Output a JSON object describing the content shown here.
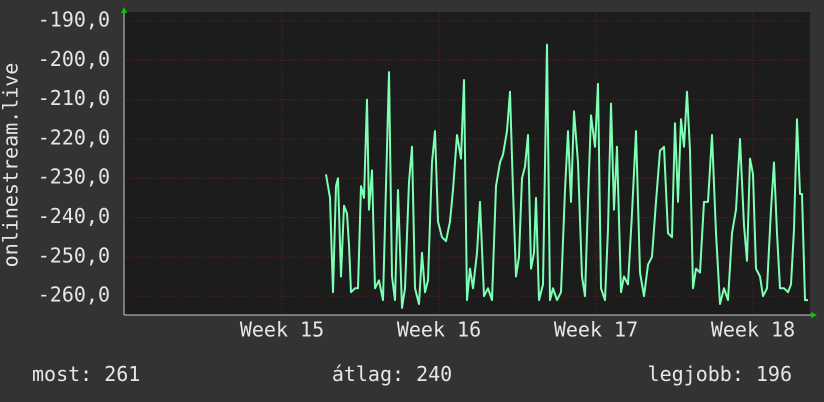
{
  "chart_data": {
    "type": "line",
    "ylabel": "onlinestream.live",
    "xlim": [
      0,
      686
    ],
    "ylim": [
      -264.8,
      -187.7
    ],
    "xticks": [
      {
        "value": 158,
        "label": "Week 15"
      },
      {
        "value": 315,
        "label": "Week 16"
      },
      {
        "value": 472,
        "label": "Week 17"
      },
      {
        "value": 629,
        "label": "Week 18"
      }
    ],
    "yticks": [
      {
        "value": -190,
        "label": "-190,0"
      },
      {
        "value": -200,
        "label": "-200,0"
      },
      {
        "value": -210,
        "label": "-210,0"
      },
      {
        "value": -220,
        "label": "-220,0"
      },
      {
        "value": -230,
        "label": "-230,0"
      },
      {
        "value": -240,
        "label": "-240,0"
      },
      {
        "value": -250,
        "label": "-250,0"
      },
      {
        "value": -260,
        "label": "-260,0"
      }
    ],
    "grid": true,
    "x": [
      202,
      206,
      209,
      212,
      214,
      217,
      220,
      223,
      225,
      227,
      231,
      234,
      237,
      240,
      243,
      245,
      248,
      251,
      255,
      259,
      262,
      265,
      268,
      271,
      274,
      278,
      281,
      285,
      288,
      291,
      295,
      298,
      301,
      304,
      308,
      311,
      314,
      318,
      322,
      326,
      329,
      333,
      337,
      340,
      343,
      346,
      349,
      353,
      356,
      360,
      364,
      368,
      372,
      376,
      379,
      383,
      386,
      389,
      392,
      395,
      398,
      401,
      404,
      407,
      410,
      412,
      415,
      419,
      423,
      426,
      429,
      433,
      437,
      441,
      444,
      447,
      450,
      454,
      458,
      461,
      464,
      467,
      471,
      474,
      477,
      481,
      484,
      487,
      490,
      493,
      497,
      500,
      504,
      508,
      512,
      516,
      520,
      524,
      528,
      532,
      536,
      540,
      544,
      548,
      551,
      554,
      557,
      560,
      563,
      566,
      569,
      572,
      576,
      580,
      584,
      588,
      592,
      596,
      600,
      604,
      608,
      612,
      616,
      620,
      623,
      626,
      629,
      632,
      636,
      639,
      643,
      647,
      650,
      653,
      656,
      660,
      664,
      667,
      670,
      673,
      676,
      678,
      681,
      684
    ],
    "series": [
      {
        "color": "#7dffb4",
        "values": [
          -229,
          -235,
          -259,
          -232,
          -230,
          -255,
          -237,
          -239,
          -247,
          -259,
          -258,
          -258,
          -232,
          -235,
          -210,
          -238,
          -228,
          -258,
          -256,
          -261,
          -232,
          -203,
          -255,
          -261,
          -233,
          -263,
          -258,
          -231,
          -222,
          -258,
          -262,
          -249,
          -259,
          -256,
          -226,
          -218,
          -241,
          -245,
          -246,
          -241,
          -233,
          -219,
          -225,
          -205,
          -261,
          -253,
          -258,
          -249,
          -236,
          -260,
          -258,
          -261,
          -232,
          -226,
          -224,
          -218,
          -208,
          -233,
          -255,
          -250,
          -230,
          -227,
          -219,
          -253,
          -249,
          -235,
          -261,
          -257,
          -196,
          -261,
          -258,
          -261,
          -259,
          -233,
          -218,
          -236,
          -213,
          -226,
          -255,
          -260,
          -236,
          -214,
          -222,
          -206,
          -258,
          -261,
          -243,
          -211,
          -238,
          -222,
          -259,
          -255,
          -257,
          -239,
          -218,
          -254,
          -260,
          -252,
          -250,
          -236,
          -223,
          -222,
          -244,
          -245,
          -216,
          -236,
          -215,
          -222,
          -208,
          -223,
          -258,
          -253,
          -254,
          -236,
          -236,
          -219,
          -244,
          -262,
          -258,
          -261,
          -244,
          -238,
          -220,
          -242,
          -251,
          -225,
          -229,
          -253,
          -255,
          -260,
          -258,
          -238,
          -226,
          -244,
          -258,
          -258,
          -259,
          -257,
          -243,
          -215,
          -234,
          -234,
          -261,
          -261
        ]
      }
    ],
    "stats": [
      {
        "label": "most:",
        "value": 261
      },
      {
        "label": "átlag:",
        "value": 240
      },
      {
        "label": "legjobb:",
        "value": 196
      }
    ]
  }
}
